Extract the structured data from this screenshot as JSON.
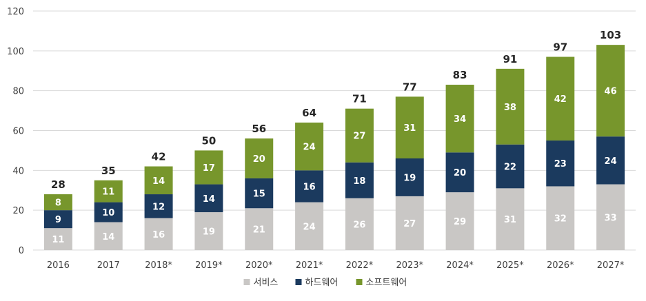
{
  "chart_data": {
    "type": "bar",
    "stacked": true,
    "categories": [
      "2016",
      "2017",
      "2018*",
      "2019*",
      "2020*",
      "2021*",
      "2022*",
      "2023*",
      "2024*",
      "2025*",
      "2026*",
      "2027*"
    ],
    "series": [
      {
        "name": "서비스",
        "color": "#c9c7c5",
        "values": [
          11,
          14,
          16,
          19,
          21,
          24,
          26,
          27,
          29,
          31,
          32,
          33
        ]
      },
      {
        "name": "하드웨어",
        "color": "#1b3a5e",
        "values": [
          9,
          10,
          12,
          14,
          15,
          16,
          18,
          19,
          20,
          22,
          23,
          24
        ]
      },
      {
        "name": "소프트웨어",
        "color": "#77962c",
        "values": [
          8,
          11,
          14,
          17,
          20,
          24,
          27,
          31,
          34,
          38,
          42,
          46
        ]
      }
    ],
    "totals": [
      28,
      35,
      42,
      50,
      56,
      64,
      71,
      77,
      83,
      91,
      97,
      103
    ],
    "ylim": [
      0,
      120
    ],
    "yticks": [
      0,
      20,
      40,
      60,
      80,
      100,
      120
    ],
    "grid": true,
    "legend_position": "bottom-center"
  }
}
